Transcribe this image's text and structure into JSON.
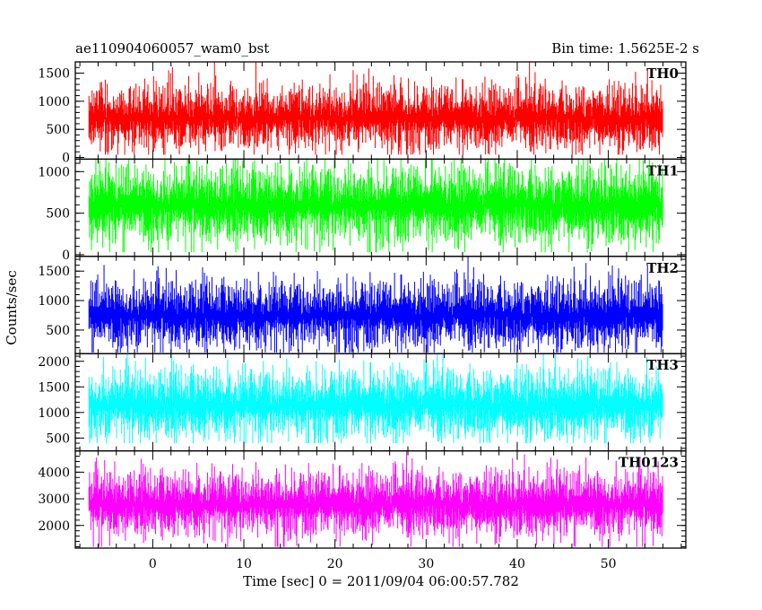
{
  "header": {
    "title": "ae110904060057_wam0_bst",
    "bin_time": "Bin time: 1.5625E-2 s"
  },
  "chart_data": {
    "type": "line",
    "title": "ae110904060057_wam0_bst",
    "subtitle": "Bin time: 1.5625E-2 s",
    "xlabel": "Time [sec] 0 = 2011/09/04 06:00:57.782",
    "ylabel": "Counts/sec",
    "xlim": [
      -8.5,
      58.5
    ],
    "x_ticks": [
      0,
      10,
      20,
      30,
      40,
      50
    ],
    "x_tick_labels": [
      "0",
      "10",
      "20",
      "30",
      "40",
      "50"
    ],
    "x_data_range": [
      -7.0,
      56.0
    ],
    "bin_time_s": 0.015625,
    "grid": false,
    "legend": "none",
    "panels": [
      {
        "name": "TH0",
        "color": "#ff0000",
        "ylim": [
          -30,
          1700
        ],
        "yticks": [
          0,
          500,
          1000,
          1500
        ],
        "ytick_labels": [
          "0",
          "500",
          "1000",
          "1500"
        ],
        "summary": {
          "mean": 700,
          "typical_low": 250,
          "typical_high": 1250,
          "min": 50,
          "max": 1700
        }
      },
      {
        "name": "TH1",
        "color": "#00ff00",
        "ylim": [
          -20,
          1150
        ],
        "yticks": [
          0,
          500,
          1000
        ],
        "ytick_labels": [
          "0",
          "500",
          "1000"
        ],
        "summary": {
          "mean": 600,
          "typical_low": 180,
          "typical_high": 1000,
          "min": 30,
          "max": 1150
        }
      },
      {
        "name": "TH2",
        "color": "#0000ff",
        "ylim": [
          100,
          1750
        ],
        "yticks": [
          500,
          1000,
          1500
        ],
        "ytick_labels": [
          "500",
          "1000",
          "1500"
        ],
        "summary": {
          "mean": 750,
          "typical_low": 300,
          "typical_high": 1300,
          "min": 120,
          "max": 1750
        }
      },
      {
        "name": "TH3",
        "color": "#00ffff",
        "ylim": [
          250,
          2150
        ],
        "yticks": [
          500,
          1000,
          1500,
          2000
        ],
        "ytick_labels": [
          "500",
          "1000",
          "1500",
          "2000"
        ],
        "summary": {
          "mean": 1150,
          "typical_low": 600,
          "typical_high": 1800,
          "min": 400,
          "max": 2150
        }
      },
      {
        "name": "TH0123",
        "color": "#ff00ff",
        "ylim": [
          1150,
          4800
        ],
        "yticks": [
          2000,
          3000,
          4000
        ],
        "ytick_labels": [
          "2000",
          "3000",
          "4000"
        ],
        "summary": {
          "mean": 2800,
          "typical_low": 1800,
          "typical_high": 3900,
          "min": 1200,
          "max": 4800
        }
      }
    ]
  }
}
